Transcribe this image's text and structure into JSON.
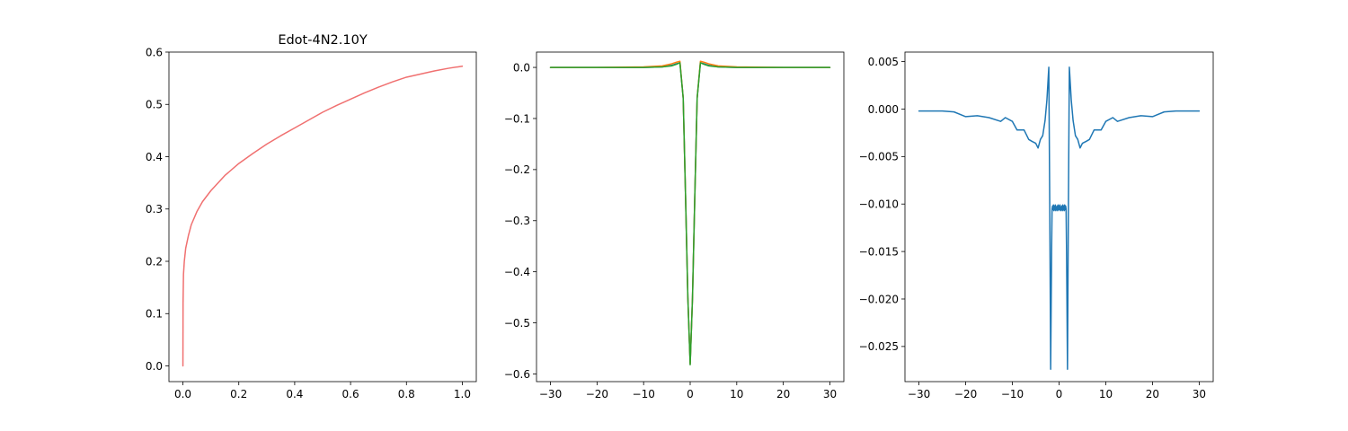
{
  "chart_data": [
    {
      "type": "line",
      "title": "Edot-4N2.10Y",
      "xlabel": "",
      "ylabel": "",
      "xlim": [
        -0.05,
        1.05
      ],
      "ylim": [
        -0.03,
        0.6
      ],
      "grid": false,
      "x_ticks": [
        0.0,
        0.2,
        0.4,
        0.6,
        0.8,
        1.0
      ],
      "x_tick_labels": [
        "0.0",
        "0.2",
        "0.4",
        "0.6",
        "0.8",
        "1.0"
      ],
      "y_ticks": [
        0.0,
        0.1,
        0.2,
        0.3,
        0.4,
        0.5,
        0.6
      ],
      "y_tick_labels": [
        "0.0",
        "0.1",
        "0.2",
        "0.3",
        "0.4",
        "0.5",
        "0.6"
      ],
      "series": [
        {
          "color": "#f07070",
          "x": [
            0,
            0.0005,
            0.002,
            0.005,
            0.01,
            0.02,
            0.03,
            0.05,
            0.07,
            0.1,
            0.15,
            0.2,
            0.25,
            0.3,
            0.35,
            0.4,
            0.45,
            0.5,
            0.55,
            0.6,
            0.65,
            0.7,
            0.75,
            0.8,
            0.85,
            0.9,
            0.95,
            1.0
          ],
          "y": [
            0,
            0.12,
            0.175,
            0.2,
            0.225,
            0.25,
            0.27,
            0.295,
            0.314,
            0.335,
            0.364,
            0.387,
            0.406,
            0.424,
            0.44,
            0.455,
            0.47,
            0.485,
            0.498,
            0.51,
            0.522,
            0.533,
            0.543,
            0.552,
            0.558,
            0.564,
            0.569,
            0.573
          ]
        }
      ]
    },
    {
      "type": "line",
      "title": "",
      "xlabel": "",
      "ylabel": "",
      "xlim": [
        -33,
        33
      ],
      "ylim": [
        -0.615,
        0.03
      ],
      "grid": false,
      "x_ticks": [
        -30,
        -20,
        -10,
        0,
        10,
        20,
        30
      ],
      "x_tick_labels": [
        "−30",
        "−20",
        "−10",
        "0",
        "10",
        "20",
        "30"
      ],
      "y_ticks": [
        0.0,
        -0.1,
        -0.2,
        -0.3,
        -0.4,
        -0.5,
        -0.6
      ],
      "y_tick_labels": [
        "0.0",
        "−0.1",
        "−0.2",
        "−0.3",
        "−0.4",
        "−0.5",
        "−0.6"
      ],
      "series": [
        {
          "color": "#1f77b4",
          "x": [
            -30,
            -20,
            -10,
            -6,
            -4,
            -3,
            -2.2,
            -1.5,
            -1,
            -0.5,
            0,
            0.5,
            1,
            1.5,
            2.2,
            3,
            4,
            6,
            10,
            20,
            30
          ],
          "y": [
            0,
            0,
            0,
            0.001,
            0.004,
            0.007,
            0.009,
            -0.06,
            -0.25,
            -0.45,
            -0.58,
            -0.45,
            -0.25,
            -0.06,
            0.009,
            0.007,
            0.004,
            0.001,
            0,
            0,
            0
          ]
        },
        {
          "color": "#ff7f0e",
          "x": [
            -30,
            -20,
            -10,
            -6,
            -4,
            -3,
            -2.2,
            -1.5,
            -1,
            -0.5,
            0,
            0.5,
            1,
            1.5,
            2.2,
            3,
            4,
            6,
            10,
            20,
            30
          ],
          "y": [
            0,
            0,
            0.001,
            0.003,
            0.007,
            0.01,
            0.012,
            -0.06,
            -0.25,
            -0.45,
            -0.58,
            -0.45,
            -0.25,
            -0.06,
            0.012,
            0.01,
            0.007,
            0.003,
            0.001,
            0,
            0
          ]
        },
        {
          "color": "#2ca02c",
          "x": [
            -30,
            -20,
            -10,
            -6,
            -4,
            -3,
            -2.2,
            -1.5,
            -1,
            -0.5,
            0,
            0.5,
            1,
            1.5,
            2.2,
            3,
            4,
            6,
            10,
            20,
            30
          ],
          "y": [
            0,
            0,
            0,
            0.001,
            0.003,
            0.006,
            0.009,
            -0.06,
            -0.25,
            -0.45,
            -0.582,
            -0.45,
            -0.25,
            -0.06,
            0.009,
            0.006,
            0.003,
            0.001,
            0,
            0,
            0
          ]
        }
      ]
    },
    {
      "type": "line",
      "title": "",
      "xlabel": "",
      "ylabel": "",
      "xlim": [
        -33,
        33
      ],
      "ylim": [
        -0.0287,
        0.006
      ],
      "grid": false,
      "x_ticks": [
        -30,
        -20,
        -10,
        0,
        10,
        20,
        30
      ],
      "x_tick_labels": [
        "−30",
        "−20",
        "−10",
        "0",
        "10",
        "20",
        "30"
      ],
      "y_ticks": [
        0.005,
        0.0,
        -0.005,
        -0.01,
        -0.015,
        -0.02,
        -0.025
      ],
      "y_tick_labels": [
        "0.005",
        "0.000",
        "−0.005",
        "−0.010",
        "−0.015",
        "−0.020",
        "−0.025"
      ],
      "series": [
        {
          "color": "#1f77b4",
          "x": [
            -30,
            -25,
            -22.5,
            -20,
            -17.5,
            -15,
            -12.5,
            -11.5,
            -10,
            -9,
            -7.5,
            -6.5,
            -5.8,
            -5,
            -4.5,
            -4,
            -3.5,
            -3,
            -2.6,
            -2.2,
            -2,
            -1.8,
            -1.6,
            -1.5,
            -1.4,
            -1.3,
            -1.2,
            -1.1,
            -1,
            -0.9,
            -0.8,
            -0.7,
            -0.6,
            -0.5,
            -0.4,
            -0.3,
            -0.2,
            -0.1,
            0,
            0.1,
            0.2,
            0.3,
            0.4,
            0.5,
            0.6,
            0.7,
            0.8,
            0.9,
            1,
            1.1,
            1.2,
            1.3,
            1.4,
            1.5,
            1.6,
            1.8,
            2,
            2.2,
            2.6,
            3,
            3.5,
            4,
            4.5,
            5,
            5.8,
            6.5,
            7.5,
            9,
            10,
            11.5,
            12.5,
            15,
            17.5,
            20,
            22.5,
            25,
            30
          ],
          "y": [
            -0.0002,
            -0.0002,
            -0.0003,
            -0.0008,
            -0.0007,
            -0.0009,
            -0.0013,
            -0.0009,
            -0.0013,
            -0.0022,
            -0.0022,
            -0.0032,
            -0.0034,
            -0.0036,
            -0.0041,
            -0.0032,
            -0.0028,
            -0.0012,
            0.001,
            0.0044,
            -0.01,
            -0.0274,
            -0.015,
            -0.0105,
            -0.0102,
            -0.0106,
            -0.0101,
            -0.0107,
            -0.0102,
            -0.0106,
            -0.0101,
            -0.0107,
            -0.0103,
            -0.0106,
            -0.0102,
            -0.0107,
            -0.0101,
            -0.0106,
            -0.0102,
            -0.0106,
            -0.0101,
            -0.0107,
            -0.0103,
            -0.0106,
            -0.0102,
            -0.0107,
            -0.0101,
            -0.0106,
            -0.0102,
            -0.0107,
            -0.0101,
            -0.0106,
            -0.0102,
            -0.0105,
            -0.015,
            -0.0274,
            -0.01,
            0.0044,
            0.001,
            -0.0012,
            -0.0028,
            -0.0032,
            -0.0041,
            -0.0036,
            -0.0034,
            -0.0032,
            -0.0022,
            -0.0022,
            -0.0013,
            -0.0009,
            -0.0013,
            -0.0009,
            -0.0007,
            -0.0008,
            -0.0003,
            -0.0002,
            -0.0002
          ]
        }
      ]
    }
  ]
}
